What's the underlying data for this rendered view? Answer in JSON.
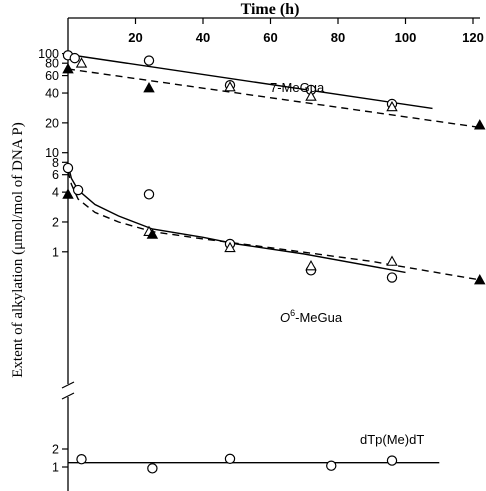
{
  "chart_data": {
    "type": "scatter",
    "title": "",
    "xlabel": "Time (h)",
    "ylabel": "Extent of alkylation (μmol/mol of DNA P)",
    "xlim": [
      0,
      122
    ],
    "x_ticks": [
      "20",
      "40",
      "60",
      "80",
      "100",
      "120"
    ],
    "y_scale": "log (broken axis)",
    "upper_panel": {
      "ylim": [
        0.45,
        100
      ],
      "y_ticks": [
        "100",
        "80",
        "60",
        "40",
        "20",
        "10",
        "8",
        "6",
        "4",
        "2",
        "1"
      ]
    },
    "lower_panel": {
      "y_ticks": [
        "2",
        "1"
      ]
    },
    "series": [
      {
        "group": "7-MeGua",
        "label": "7-MeGua",
        "markers": [
          {
            "symbol": "open-circle",
            "points": [
              [
                0,
                96
              ],
              [
                2,
                90
              ],
              [
                24,
                85
              ],
              [
                48,
                48
              ],
              [
                72,
                43
              ],
              [
                96,
                31
              ]
            ]
          },
          {
            "symbol": "open-triangle",
            "points": [
              [
                4,
                80
              ],
              [
                48,
                46
              ],
              [
                72,
                37
              ],
              [
                96,
                29
              ]
            ]
          },
          {
            "symbol": "filled-triangle",
            "points": [
              [
                0,
                70
              ],
              [
                24,
                45
              ],
              [
                122,
                19
              ]
            ]
          }
        ],
        "fits": [
          {
            "style": "solid",
            "points": [
              [
                0,
                98
              ],
              [
                108,
                28
              ]
            ]
          },
          {
            "style": "dashed",
            "points": [
              [
                0,
                70
              ],
              [
                122,
                18
              ]
            ]
          }
        ]
      },
      {
        "group": "O6-MeGua",
        "label_main": "O",
        "label_sup": "6",
        "label_rest": "-MeGua",
        "markers": [
          {
            "symbol": "open-circle",
            "points": [
              [
                0,
                7
              ],
              [
                3,
                4.2
              ],
              [
                24,
                3.8
              ],
              [
                48,
                1.2
              ],
              [
                72,
                0.65
              ],
              [
                96,
                0.55
              ]
            ]
          },
          {
            "symbol": "open-triangle",
            "points": [
              [
                24,
                1.6
              ],
              [
                48,
                1.1
              ],
              [
                72,
                0.72
              ],
              [
                96,
                0.8
              ]
            ]
          },
          {
            "symbol": "filled-triangle",
            "points": [
              [
                0,
                3.8
              ],
              [
                25,
                1.5
              ],
              [
                122,
                0.52
              ]
            ]
          }
        ],
        "fits": [
          {
            "style": "solid",
            "points": [
              [
                0,
                7.6
              ],
              [
                1,
                5.5
              ],
              [
                3,
                4.2
              ],
              [
                8,
                3.0
              ],
              [
                15,
                2.3
              ],
              [
                25,
                1.7
              ],
              [
                40,
                1.4
              ],
              [
                50,
                1.2
              ],
              [
                70,
                0.95
              ],
              [
                100,
                0.62
              ]
            ]
          },
          {
            "style": "dashed",
            "points": [
              [
                0,
                6.5
              ],
              [
                1,
                4.8
              ],
              [
                3,
                3.4
              ],
              [
                8,
                2.5
              ],
              [
                15,
                2.0
              ],
              [
                25,
                1.6
              ],
              [
                40,
                1.35
              ],
              [
                60,
                1.1
              ],
              [
                90,
                0.8
              ],
              [
                122,
                0.52
              ]
            ]
          }
        ]
      },
      {
        "group": "dTp(Me)dT",
        "label": "dTp(Me)dT",
        "markers": [
          {
            "symbol": "open-circle",
            "points": [
              [
                4,
                1.35
              ],
              [
                25,
                0.95
              ],
              [
                48,
                1.37
              ],
              [
                78,
                1.05
              ],
              [
                96,
                1.28
              ]
            ]
          }
        ],
        "fits": [
          {
            "style": "solid",
            "points": [
              [
                0,
                1.18
              ],
              [
                110,
                1.18
              ]
            ]
          }
        ]
      }
    ]
  }
}
